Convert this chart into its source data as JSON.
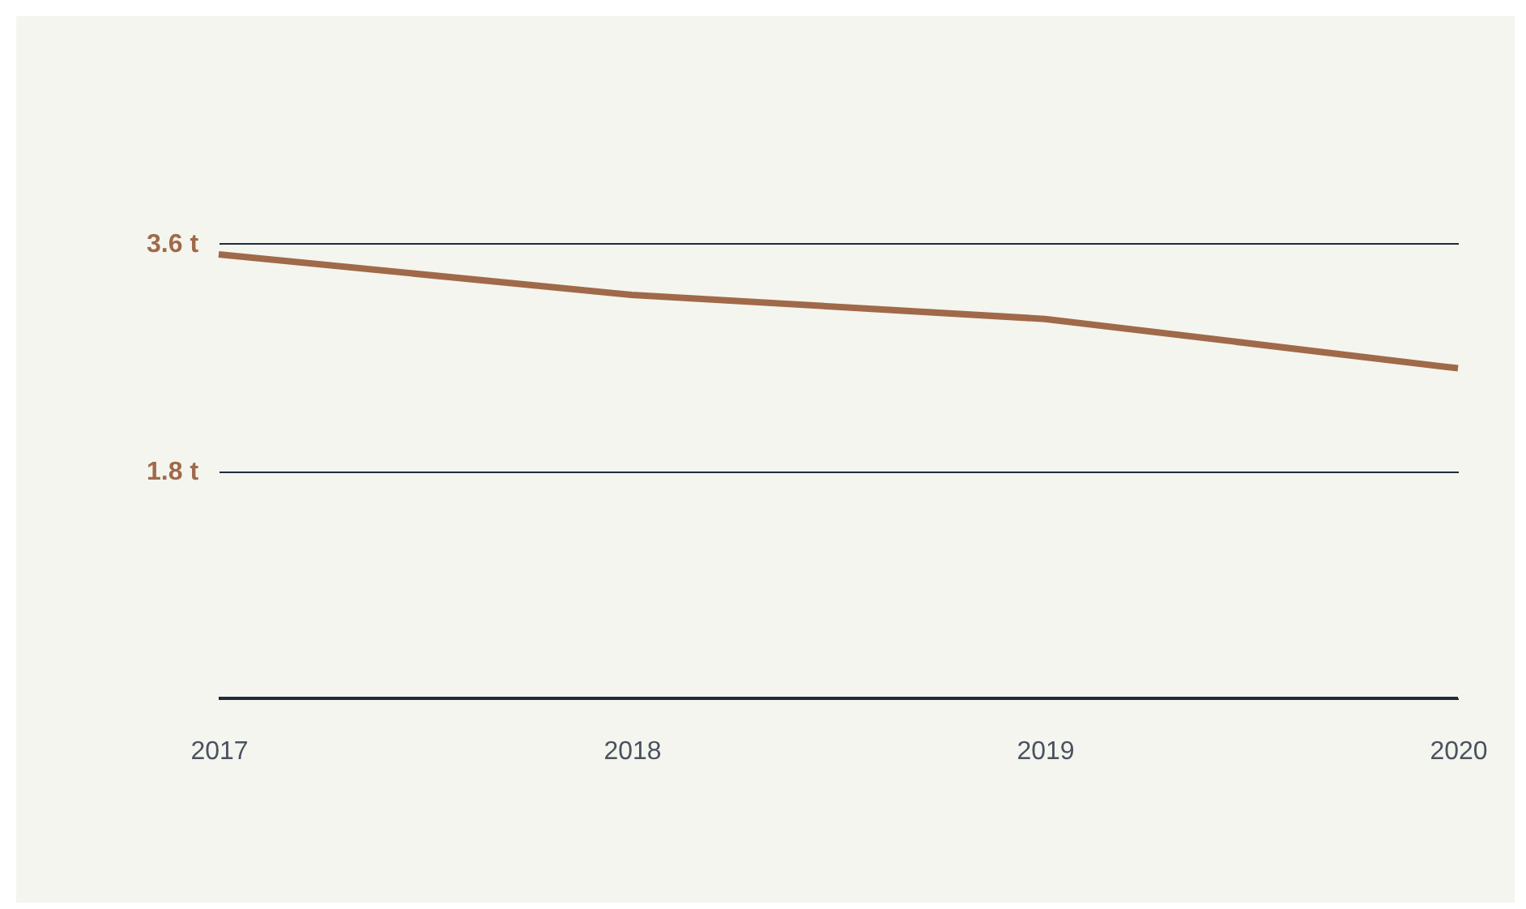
{
  "chart_data": {
    "type": "line",
    "categories": [
      "2017",
      "2018",
      "2019",
      "2020"
    ],
    "series": [
      {
        "color": "#a0694a",
        "values": [
          3.51,
          3.19,
          3.0,
          2.61
        ]
      }
    ],
    "ylim": [
      0,
      3.6
    ],
    "yticks": [
      {
        "value": 0,
        "label": null
      },
      {
        "value": 1.8,
        "label": "1.8 t"
      },
      {
        "value": 3.6,
        "label": "3.6 t"
      }
    ],
    "grid": "y",
    "marker": "none",
    "line_style": "solid"
  }
}
